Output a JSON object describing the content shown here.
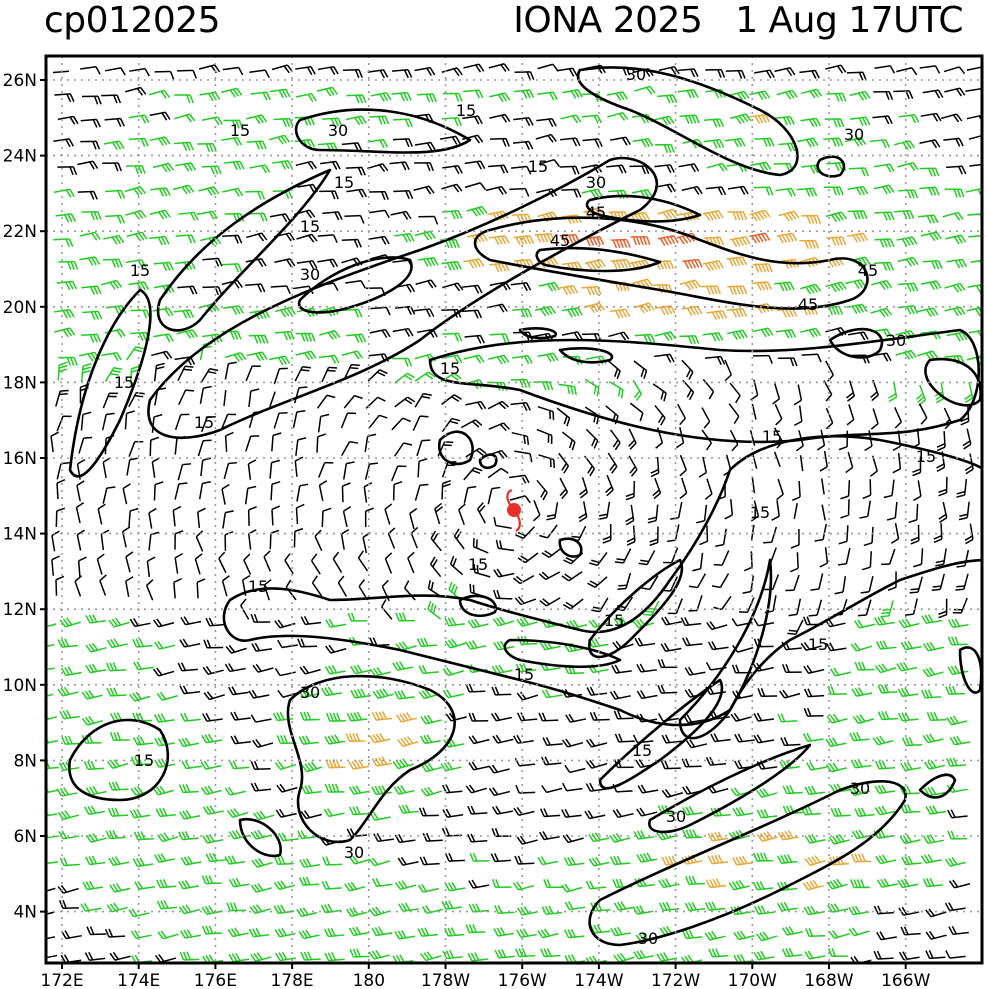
{
  "header": {
    "storm_id": "cp012025",
    "storm_name": "IONA 2025",
    "date": "1 Aug",
    "time": "17UTC"
  },
  "axes": {
    "lat_labels": [
      "26N",
      "24N",
      "22N",
      "20N",
      "18N",
      "16N",
      "14N",
      "12N",
      "10N",
      "8N",
      "6N",
      "4N"
    ],
    "lon_labels": [
      "172E",
      "174E",
      "176E",
      "178E",
      "180",
      "178W",
      "176W",
      "174W",
      "172W",
      "170W",
      "168W",
      "166W"
    ]
  },
  "contour_labels": [
    "15",
    "30",
    "45"
  ],
  "colors": {
    "barb_calm": "#000000",
    "barb_moderate": "#22cc22",
    "barb_strong": "#e8a838",
    "barb_very_strong": "#e8602a",
    "storm_symbol": "#e8302a",
    "grid": "#9a9a9a",
    "contour": "#000000"
  },
  "icons": {
    "storm_center": "tropical-cyclone-icon"
  }
}
